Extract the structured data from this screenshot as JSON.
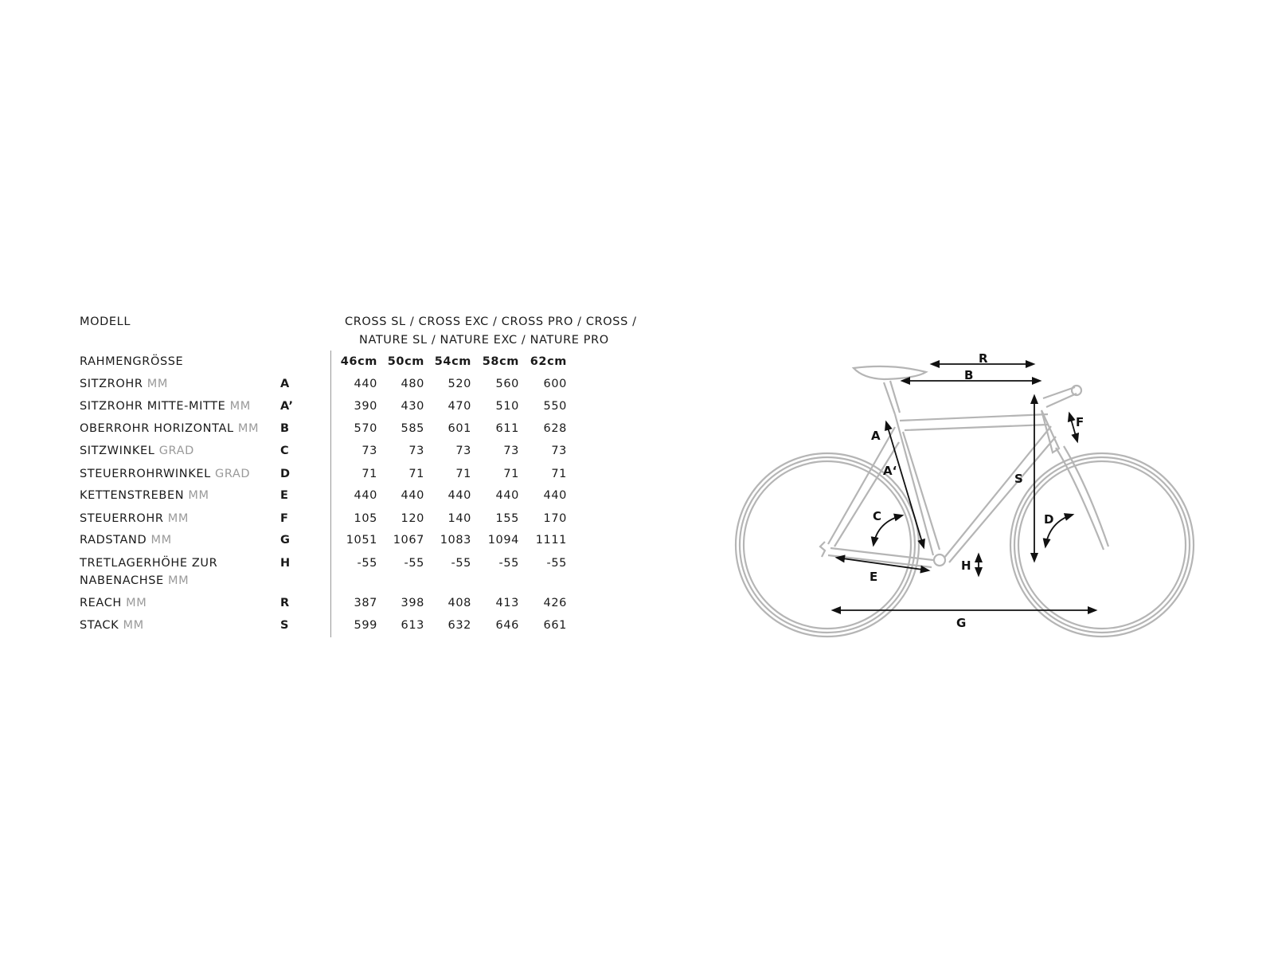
{
  "table": {
    "model_label": "MODELL",
    "model_line1": "CROSS SL / CROSS EXC / CROSS PRO / CROSS /",
    "model_line2": "NATURE SL / NATURE EXC /  NATURE PRO",
    "size_label": "RAHMENGRÖSSE",
    "sizes": [
      "46cm",
      "50cm",
      "54cm",
      "58cm",
      "62cm"
    ],
    "rows": [
      {
        "label": "SITZROHR",
        "unit": "MM",
        "letter": "A",
        "values": [
          "440",
          "480",
          "520",
          "560",
          "600"
        ]
      },
      {
        "label": "SITZROHR MITTE-MITTE",
        "unit": "MM",
        "letter": "A’",
        "values": [
          "390",
          "430",
          "470",
          "510",
          "550"
        ]
      },
      {
        "label": "OBERROHR HORIZONTAL",
        "unit": "MM",
        "letter": "B",
        "values": [
          "570",
          "585",
          "601",
          "611",
          "628"
        ]
      },
      {
        "label": "SITZWINKEL",
        "unit": "GRAD",
        "letter": "C",
        "values": [
          "73",
          "73",
          "73",
          "73",
          "73"
        ]
      },
      {
        "label": "STEUERROHRWINKEL",
        "unit": "GRAD",
        "letter": "D",
        "values": [
          "71",
          "71",
          "71",
          "71",
          "71"
        ]
      },
      {
        "label": "KETTENSTREBEN",
        "unit": "MM",
        "letter": "E",
        "values": [
          "440",
          "440",
          "440",
          "440",
          "440"
        ]
      },
      {
        "label": "STEUERROHR",
        "unit": "MM",
        "letter": "F",
        "values": [
          "105",
          "120",
          "140",
          "155",
          "170"
        ]
      },
      {
        "label": "RADSTAND",
        "unit": "MM",
        "letter": "G",
        "values": [
          "1051",
          "1067",
          "1083",
          "1094",
          "1111"
        ]
      },
      {
        "label": "TRETLAGERHÖHE ZUR",
        "label2": "NABENACHSE",
        "unit": "MM",
        "letter": "H",
        "values": [
          "-55",
          "-55",
          "-55",
          "-55",
          "-55"
        ]
      },
      {
        "label": "REACH",
        "unit": "MM",
        "letter": "R",
        "values": [
          "387",
          "398",
          "408",
          "413",
          "426"
        ]
      },
      {
        "label": "STACK",
        "unit": "MM",
        "letter": "S",
        "values": [
          "599",
          "613",
          "632",
          "646",
          "661"
        ]
      }
    ]
  },
  "diagram": {
    "labels": {
      "R": "R",
      "B": "B",
      "A": "A",
      "A2": "A‘",
      "S": "S",
      "F": "F",
      "C": "C",
      "D": "D",
      "H": "H",
      "E": "E",
      "G": "G"
    },
    "frame_color": "#b5b5b5",
    "arrow_color": "#111111"
  }
}
